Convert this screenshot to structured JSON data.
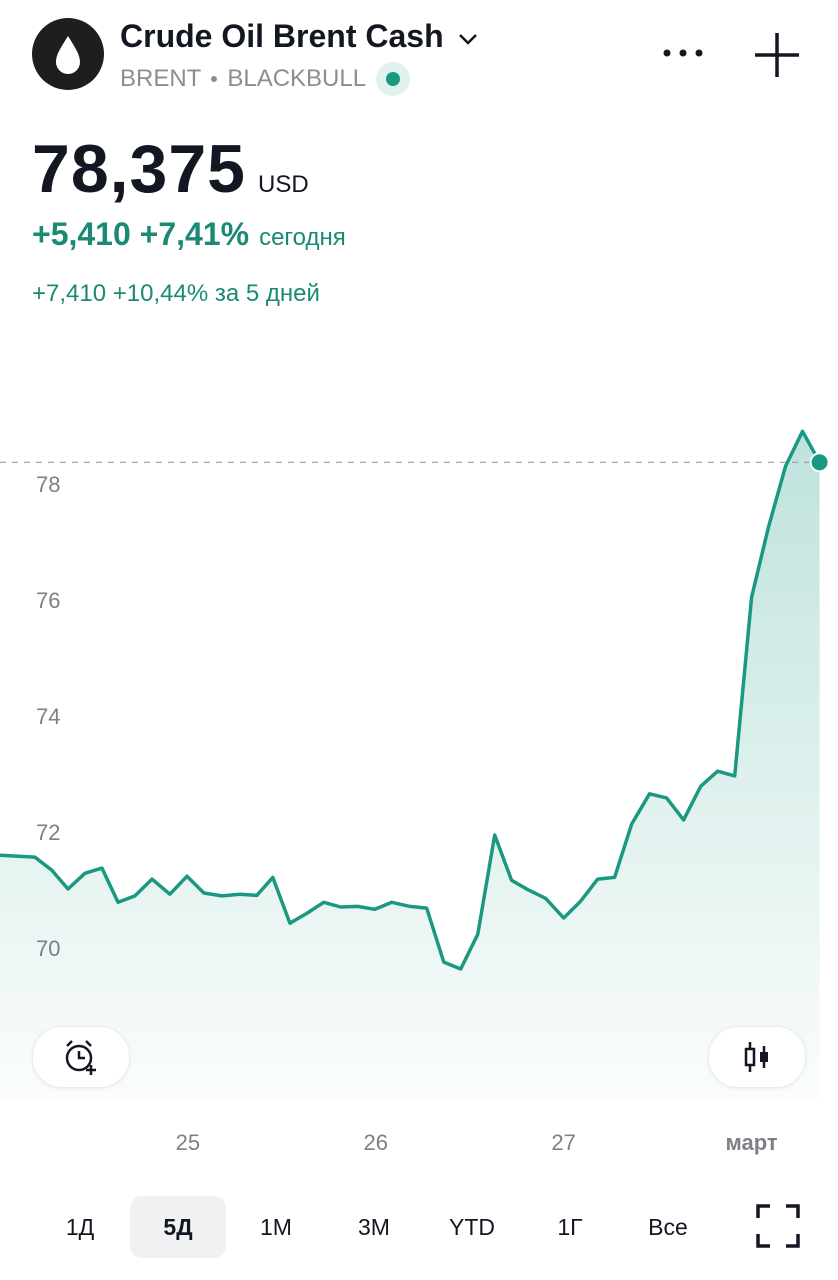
{
  "header": {
    "title": "Crude Oil Brent Cash",
    "symbol": "BRENT",
    "exchange": "BLACKBULL"
  },
  "quote": {
    "price": "78,375",
    "currency": "USD",
    "change_today": "+5,410 +7,41%",
    "today_label": "сегодня",
    "change_5d": "+7,410 +10,44% за 5 дней"
  },
  "chart_data": {
    "type": "line",
    "x": [
      24,
      24.186,
      24.277,
      24.362,
      24.452,
      24.543,
      24.628,
      24.718,
      24.809,
      24.904,
      24.995,
      25.085,
      25.181,
      25.277,
      25.367,
      25.452,
      25.543,
      25.633,
      25.723,
      25.814,
      25.904,
      25.995,
      26.085,
      26.181,
      26.271,
      26.362,
      26.452,
      26.543,
      26.633,
      26.723,
      26.814,
      26.904,
      27.0,
      27.09,
      27.181,
      27.271,
      27.362,
      27.457,
      27.548,
      27.638,
      27.729,
      27.819,
      27.91,
      28.0,
      28.09,
      28.181,
      28.271,
      28.362
    ],
    "series": [
      {
        "color": "#1a9882",
        "values": [
          71.6,
          71.57,
          71.34,
          71.02,
          71.29,
          71.38,
          70.79,
          70.9,
          71.19,
          70.93,
          71.24,
          70.95,
          70.9,
          70.93,
          70.91,
          71.22,
          70.43,
          70.6,
          70.79,
          70.71,
          70.72,
          70.67,
          70.79,
          70.72,
          70.69,
          69.76,
          69.64,
          70.24,
          71.95,
          71.17,
          71.0,
          70.86,
          70.52,
          70.81,
          71.19,
          71.22,
          72.14,
          72.66,
          72.59,
          72.21,
          72.79,
          73.05,
          72.97,
          76.05,
          77.26,
          78.31,
          78.91,
          78.375
        ]
      }
    ],
    "xlim": [
      24,
      28.46
    ],
    "ylim": [
      67.4,
      81
    ],
    "xticks": [
      25,
      26,
      27,
      {
        "value": 28,
        "label": "март"
      }
    ],
    "yticks": [
      70,
      72,
      74,
      76,
      78
    ],
    "grid": false
  },
  "periods": [
    "1Д",
    "5Д",
    "1М",
    "3М",
    "YTD",
    "1Г",
    "Все"
  ],
  "selected_period": 1
}
